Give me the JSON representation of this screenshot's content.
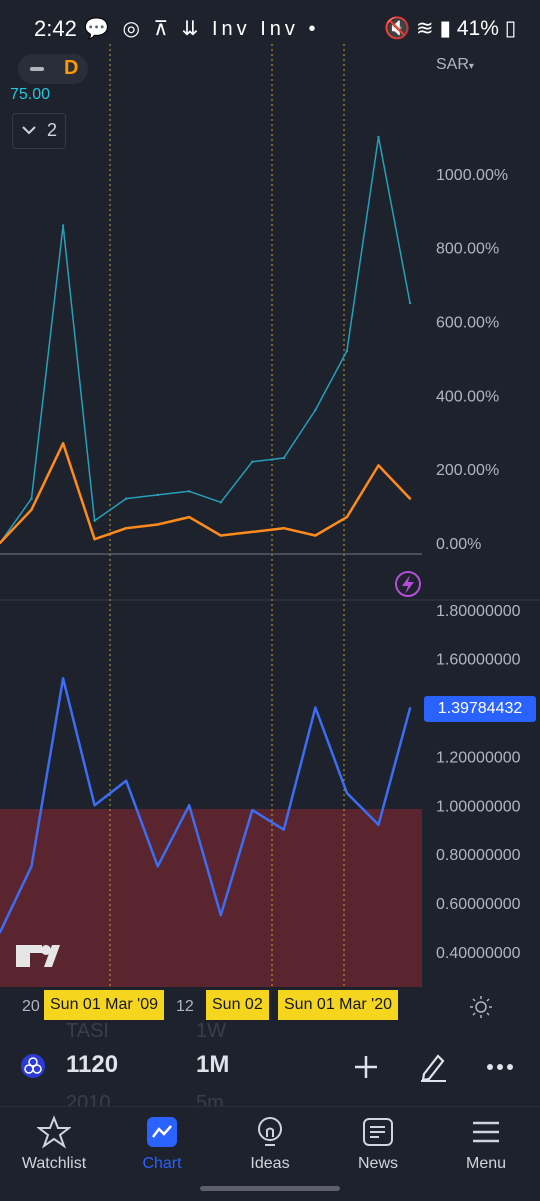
{
  "status_bar": {
    "time": "2:42",
    "left_icons": "💬 ◎ ⊼ ⇊ Inv Inv •",
    "battery": "41%"
  },
  "chart_header": {
    "interval_symbol": "D",
    "price_value": "75.00",
    "indicator_count": "2",
    "currency": "SAR"
  },
  "colors": {
    "teal_series": "#26a0b8",
    "orange_series": "#ff8c1a",
    "blue_series": "#3d6df2",
    "highlight_zone": "#5a252f",
    "date_tag": "#f5d51e",
    "accent": "#2962ff"
  },
  "chart_data": [
    {
      "type": "line",
      "x": [
        "2006",
        "2007",
        "2008",
        "2009",
        "2010",
        "2012",
        "2014",
        "2016",
        "2018",
        "2019",
        "2020",
        "2021",
        "2022",
        "2023"
      ],
      "series": [
        {
          "values": [
            0,
            120,
            860,
            60,
            120,
            130,
            140,
            110,
            220,
            230,
            360,
            520,
            1100,
            650
          ]
        },
        {
          "values": [
            0,
            90,
            270,
            10,
            40,
            50,
            70,
            20,
            30,
            40,
            20,
            70,
            210,
            120
          ]
        }
      ],
      "yticks": [
        "1000.00%",
        "800.00%",
        "600.00%",
        "400.00%",
        "200.00%",
        "0.00%"
      ],
      "ylim": [
        -30,
        1200
      ]
    },
    {
      "type": "line",
      "x": [
        "2006",
        "2007",
        "2008",
        "2009",
        "2010",
        "2012",
        "2014",
        "2016",
        "2018",
        "2019",
        "2020",
        "2021",
        "2022",
        "2023"
      ],
      "series": [
        {
          "values": [
            0.48,
            0.75,
            1.52,
            1.0,
            1.1,
            0.75,
            1.0,
            0.55,
            0.98,
            0.9,
            1.4,
            1.05,
            0.92,
            1.397
          ]
        }
      ],
      "yticks": [
        "1.80000000",
        "1.60000000",
        "1.40000000",
        "1.20000000",
        "1.00000000",
        "0.80000000",
        "0.60000000",
        "0.40000000"
      ],
      "ylim": [
        0.35,
        1.82
      ],
      "last_value": "1.39784432",
      "threshold": 1.0
    }
  ],
  "time_axis": {
    "left_stub": "20",
    "date_tags": [
      "Sun 01 Mar '09",
      "Sun 02",
      "Sun 01 Mar '20"
    ],
    "partial_label": "12"
  },
  "toolbar": {
    "symbol": "1120",
    "timeframe": "1M",
    "ghost_symbol": "TASI",
    "ghost_timeframe": "1W",
    "ghost_year": "2010",
    "ghost_tf2": "5m"
  },
  "nav": {
    "watchlist": "Watchlist",
    "chart": "Chart",
    "ideas": "Ideas",
    "news": "News",
    "menu": "Menu"
  }
}
